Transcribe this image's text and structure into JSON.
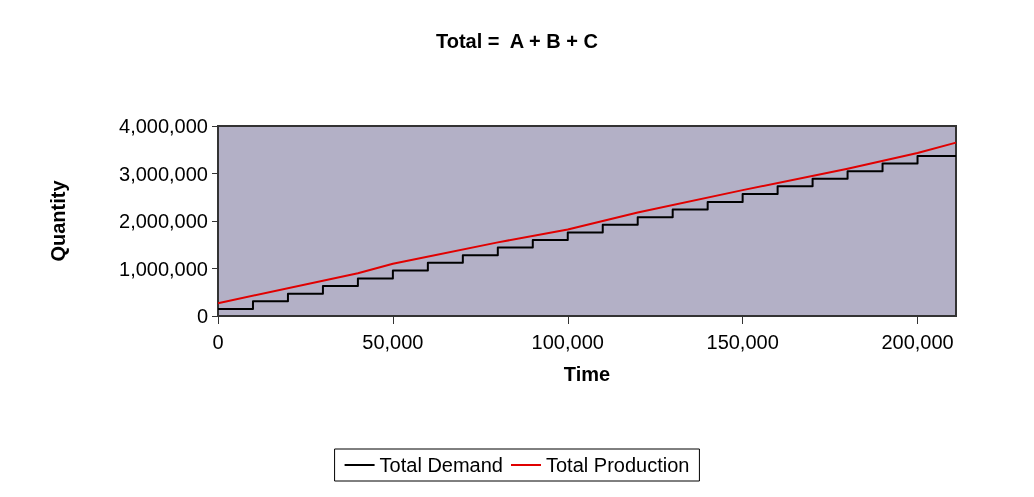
{
  "chart_data": {
    "type": "line",
    "title": "Total =  A + B + C",
    "xlabel": "Time",
    "ylabel": "Quantity",
    "xlim": [
      0,
      211000
    ],
    "xticks": [
      {
        "value": 0,
        "label": "0"
      },
      {
        "value": 50000,
        "label": "50,000"
      },
      {
        "value": 100000,
        "label": "100,000"
      },
      {
        "value": 150000,
        "label": "150,000"
      },
      {
        "value": 200000,
        "label": "200,000"
      }
    ],
    "ylim": [
      0,
      4000000
    ],
    "yticks": [
      {
        "value": 0,
        "label": "0"
      },
      {
        "value": 1000000,
        "label": "1,000,000"
      },
      {
        "value": 2000000,
        "label": "2,000,000"
      },
      {
        "value": 3000000,
        "label": "3,000,000"
      },
      {
        "value": 4000000,
        "label": "4,000,000"
      }
    ],
    "grid": false,
    "legend": "bottom",
    "marker": "none",
    "series": [
      {
        "name": "Total Demand",
        "type": "step",
        "color": "#000000",
        "x": [
          0,
          10000,
          20000,
          30000,
          40000,
          50000,
          60000,
          70000,
          80000,
          90000,
          100000,
          110000,
          120000,
          130000,
          140000,
          150000,
          160000,
          170000,
          180000,
          190000,
          200000,
          211000
        ],
        "values": [
          150000,
          310000,
          470000,
          630000,
          790000,
          960000,
          1120000,
          1280000,
          1440000,
          1600000,
          1760000,
          1920000,
          2080000,
          2240000,
          2400000,
          2570000,
          2730000,
          2890000,
          3050000,
          3210000,
          3370000,
          3370000
        ]
      },
      {
        "name": "Total Production",
        "color": "#e00000",
        "x": [
          0,
          40000,
          50000,
          80000,
          100000,
          120000,
          150000,
          180000,
          200000,
          211000
        ],
        "values": [
          270000,
          900000,
          1100000,
          1550000,
          1820000,
          2180000,
          2650000,
          3100000,
          3430000,
          3650000
        ]
      }
    ]
  }
}
